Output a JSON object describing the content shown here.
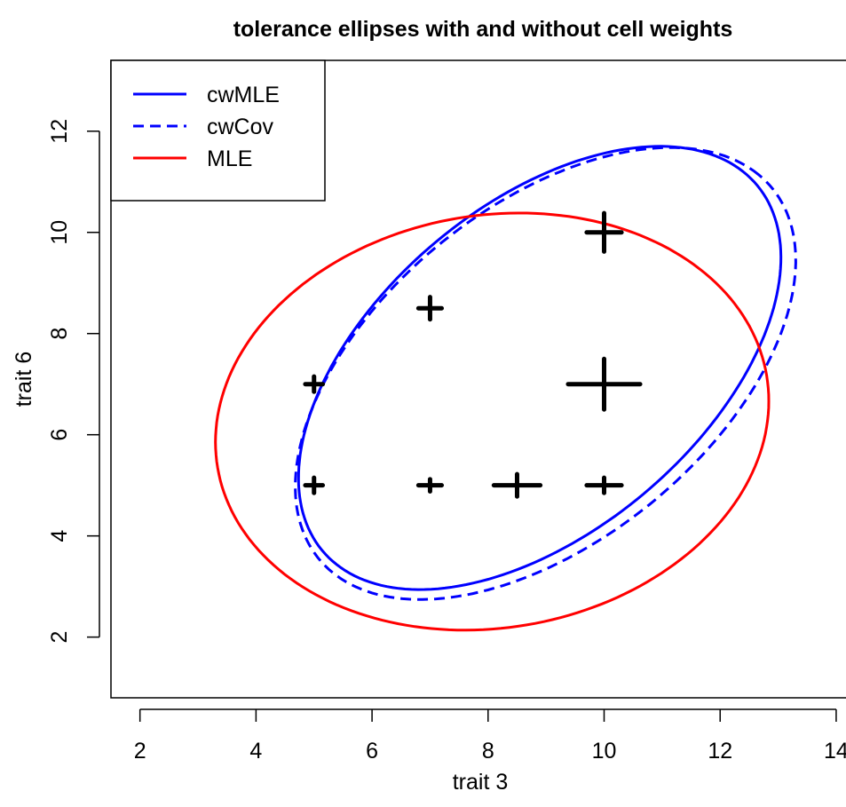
{
  "chart_data": {
    "type": "scatter",
    "title": "tolerance ellipses with and without cell weights",
    "xlabel": "trait 3",
    "ylabel": "trait 6",
    "xlim": [
      1.5,
      14.2
    ],
    "ylim": [
      0.8,
      13.4
    ],
    "x_ticks": [
      2,
      4,
      6,
      8,
      10,
      12,
      14
    ],
    "y_ticks": [
      2,
      4,
      6,
      8,
      10,
      12
    ],
    "grid": false,
    "legend_position": "top-left",
    "points": [
      {
        "x": 5,
        "y": 7,
        "hw": 0.15,
        "hh": 0.15
      },
      {
        "x": 5,
        "y": 5,
        "hw": 0.15,
        "hh": 0.15
      },
      {
        "x": 7,
        "y": 8.5,
        "hw": 0.2,
        "hh": 0.22
      },
      {
        "x": 7,
        "y": 5,
        "hw": 0.2,
        "hh": 0.12
      },
      {
        "x": 8.5,
        "y": 5,
        "hw": 0.4,
        "hh": 0.22
      },
      {
        "x": 10,
        "y": 10,
        "hw": 0.3,
        "hh": 0.38
      },
      {
        "x": 10,
        "y": 7,
        "hw": 0.62,
        "hh": 0.5
      },
      {
        "x": 10,
        "y": 5,
        "hw": 0.3,
        "hh": 0.15
      }
    ],
    "series": [
      {
        "name": "cwMLE",
        "color": "#0000FF",
        "dash": false,
        "ellipse": {
          "cx": 8.89,
          "cy": 7.32,
          "a": 5.23,
          "b": 3.02,
          "angle_deg": 48
        }
      },
      {
        "name": "cwCov",
        "color": "#0000FF",
        "dash": true,
        "ellipse": {
          "cx": 8.99,
          "cy": 7.21,
          "a": 5.38,
          "b": 3.1,
          "angle_deg": 47
        }
      },
      {
        "name": "MLE",
        "color": "#FF0000",
        "dash": false,
        "ellipse": {
          "cx": 8.07,
          "cy": 6.26,
          "a": 4.83,
          "b": 4.05,
          "angle_deg": 17
        }
      }
    ]
  }
}
